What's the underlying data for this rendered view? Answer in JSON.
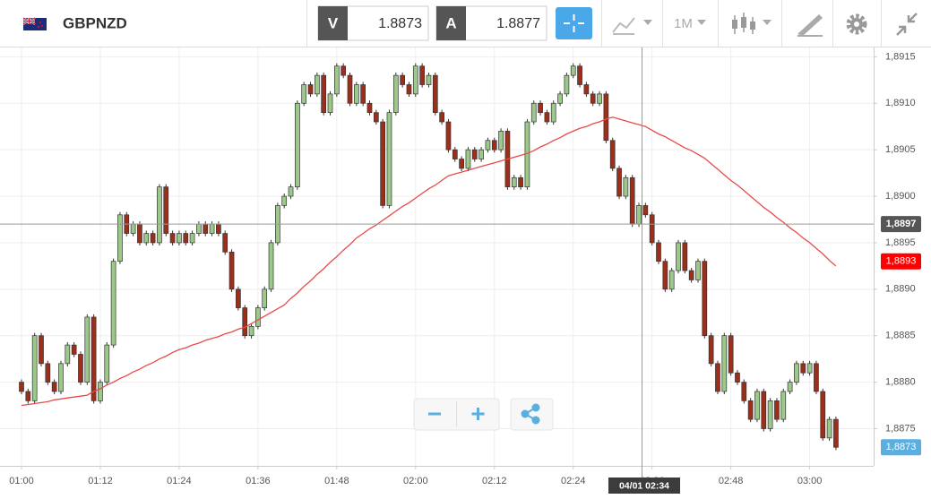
{
  "toolbar": {
    "symbol": "GBPNZD",
    "bid_label": "V",
    "bid": 1.8873,
    "ask_label": "A",
    "ask": 1.8877,
    "timeframe": "1M"
  },
  "chart_data": {
    "type": "candlestick",
    "categories": [
      "01:00",
      null,
      null,
      null,
      null,
      null,
      null,
      null,
      null,
      null,
      null,
      null,
      "01:12",
      null,
      null,
      null,
      null,
      null,
      null,
      null,
      null,
      null,
      null,
      null,
      "01:24",
      null,
      null,
      null,
      null,
      null,
      null,
      null,
      null,
      null,
      null,
      null,
      "01:36",
      null,
      null,
      null,
      null,
      null,
      null,
      null,
      null,
      null,
      null,
      null,
      "01:48",
      null,
      null,
      null,
      null,
      null,
      null,
      null,
      null,
      null,
      null,
      null,
      "02:00",
      null,
      null,
      null,
      null,
      null,
      null,
      null,
      null,
      null,
      null,
      null,
      "02:12",
      null,
      null,
      null,
      null,
      null,
      null,
      null,
      null,
      null,
      null,
      null,
      "02:24",
      null,
      null,
      null,
      null,
      null,
      null,
      null,
      null,
      null,
      null,
      null,
      "02:36",
      null,
      null,
      null,
      null,
      null,
      null,
      null,
      null,
      null,
      null,
      null,
      "02:48",
      null,
      null,
      null,
      null,
      null,
      null,
      null,
      null,
      null,
      null,
      null,
      "03:00",
      null,
      null,
      null,
      null
    ],
    "open": [
      1.888,
      1.8879,
      1.8878,
      1.8885,
      1.8882,
      1.888,
      1.8879,
      1.8882,
      1.8884,
      1.8883,
      1.888,
      1.8887,
      1.8878,
      1.888,
      1.8884,
      1.8893,
      1.8898,
      1.8896,
      1.8897,
      1.8895,
      1.8896,
      1.8895,
      1.8901,
      1.8896,
      1.8895,
      1.8896,
      1.8895,
      1.8896,
      1.8897,
      1.8896,
      1.8897,
      1.8896,
      1.8894,
      1.889,
      1.8888,
      1.8885,
      1.8886,
      1.8888,
      1.889,
      1.8895,
      1.8899,
      1.89,
      1.8901,
      1.891,
      1.8912,
      1.8911,
      1.8913,
      1.8909,
      1.8911,
      1.8914,
      1.8913,
      1.891,
      1.8912,
      1.891,
      1.8909,
      1.8908,
      1.8899,
      1.8909,
      1.8913,
      1.8912,
      1.8911,
      1.8914,
      1.8912,
      1.8913,
      1.8909,
      1.8908,
      1.8905,
      1.8904,
      1.8903,
      1.8905,
      1.8904,
      1.8905,
      1.8906,
      1.8905,
      1.8907,
      1.8901,
      1.8902,
      1.8901,
      1.8908,
      1.891,
      1.8909,
      1.8908,
      1.891,
      1.8911,
      1.8913,
      1.8914,
      1.8912,
      1.8911,
      1.891,
      1.8911,
      1.8906,
      1.8903,
      1.89,
      1.8902,
      1.8897,
      1.8899,
      1.8898,
      1.8895,
      1.8893,
      1.889,
      1.8892,
      1.8895,
      1.8892,
      1.8891,
      1.8893,
      1.8885,
      1.8882,
      1.8879,
      1.8885,
      1.8881,
      1.888,
      1.8878,
      1.8876,
      1.8879,
      1.8875,
      1.8878,
      1.8876,
      1.8879,
      1.888,
      1.8882,
      1.8881,
      1.8882,
      1.8879,
      1.8874,
      1.8876
    ],
    "high": [
      1.88803,
      1.88793,
      1.88853,
      1.88853,
      1.88823,
      1.88803,
      1.88823,
      1.88843,
      1.88843,
      1.88833,
      1.88873,
      1.88873,
      1.88803,
      1.88843,
      1.88933,
      1.88983,
      1.88983,
      1.88973,
      1.88973,
      1.88963,
      1.88963,
      1.89013,
      1.89013,
      1.88963,
      1.88963,
      1.88963,
      1.88963,
      1.88973,
      1.88973,
      1.88973,
      1.88973,
      1.88963,
      1.88943,
      1.88903,
      1.88883,
      1.88863,
      1.88883,
      1.88903,
      1.88953,
      1.88993,
      1.89003,
      1.89013,
      1.89103,
      1.89123,
      1.89123,
      1.89133,
      1.89133,
      1.89113,
      1.89143,
      1.89143,
      1.89133,
      1.89123,
      1.89123,
      1.89103,
      1.89093,
      1.89083,
      1.89093,
      1.89133,
      1.89133,
      1.89123,
      1.89143,
      1.89143,
      1.89133,
      1.89133,
      1.89093,
      1.89083,
      1.89053,
      1.89043,
      1.89053,
      1.89053,
      1.89053,
      1.89063,
      1.89063,
      1.89073,
      1.89073,
      1.89023,
      1.89023,
      1.89083,
      1.89103,
      1.89103,
      1.89093,
      1.89103,
      1.89113,
      1.89133,
      1.89143,
      1.89143,
      1.89123,
      1.89113,
      1.89113,
      1.89113,
      1.89063,
      1.89033,
      1.89023,
      1.89023,
      1.88993,
      1.88993,
      1.88983,
      1.88953,
      1.88933,
      1.88923,
      1.88953,
      1.88953,
      1.88923,
      1.88933,
      1.88933,
      1.88853,
      1.88823,
      1.88853,
      1.88853,
      1.88813,
      1.88803,
      1.88783,
      1.88793,
      1.88793,
      1.88783,
      1.88783,
      1.88793,
      1.88803,
      1.88823,
      1.88823,
      1.88823,
      1.88823,
      1.88793,
      1.88763,
      1.88763
    ],
    "low": [
      1.88787,
      1.88777,
      1.88777,
      1.88817,
      1.88797,
      1.88787,
      1.88787,
      1.88817,
      1.88827,
      1.88797,
      1.88797,
      1.88777,
      1.88777,
      1.88797,
      1.88837,
      1.88927,
      1.88957,
      1.88957,
      1.88947,
      1.88947,
      1.88947,
      1.88947,
      1.88957,
      1.88947,
      1.88947,
      1.88947,
      1.88947,
      1.88957,
      1.88957,
      1.88957,
      1.88957,
      1.88937,
      1.88897,
      1.88877,
      1.88847,
      1.88847,
      1.88857,
      1.88877,
      1.88897,
      1.88947,
      1.88987,
      1.88997,
      1.89007,
      1.89097,
      1.89107,
      1.89107,
      1.89087,
      1.89087,
      1.89107,
      1.89127,
      1.89097,
      1.89097,
      1.89097,
      1.89087,
      1.89077,
      1.88987,
      1.88987,
      1.89087,
      1.89117,
      1.89107,
      1.89107,
      1.89117,
      1.89117,
      1.89087,
      1.89077,
      1.89047,
      1.89037,
      1.89027,
      1.89027,
      1.89037,
      1.89037,
      1.89047,
      1.89047,
      1.89047,
      1.89007,
      1.89007,
      1.89007,
      1.89007,
      1.89077,
      1.89087,
      1.89077,
      1.89077,
      1.89097,
      1.89107,
      1.89127,
      1.89117,
      1.89107,
      1.89097,
      1.89097,
      1.89057,
      1.89027,
      1.88997,
      1.88997,
      1.88967,
      1.88967,
      1.88977,
      1.88947,
      1.88927,
      1.88897,
      1.88897,
      1.88917,
      1.88917,
      1.88907,
      1.88907,
      1.88847,
      1.88817,
      1.88787,
      1.88787,
      1.88807,
      1.88797,
      1.88777,
      1.88757,
      1.88757,
      1.88747,
      1.88747,
      1.88757,
      1.88757,
      1.88787,
      1.88797,
      1.88807,
      1.88807,
      1.88787,
      1.88737,
      1.88737,
      1.88727
    ],
    "close": [
      1.8879,
      1.8878,
      1.8885,
      1.8882,
      1.888,
      1.8879,
      1.8882,
      1.8884,
      1.8883,
      1.888,
      1.8887,
      1.8878,
      1.888,
      1.8884,
      1.8893,
      1.8898,
      1.8896,
      1.8897,
      1.8895,
      1.8896,
      1.8895,
      1.8901,
      1.8896,
      1.8895,
      1.8896,
      1.8895,
      1.8896,
      1.8897,
      1.8896,
      1.8897,
      1.8896,
      1.8894,
      1.889,
      1.8888,
      1.8885,
      1.8886,
      1.8888,
      1.889,
      1.8895,
      1.8899,
      1.89,
      1.8901,
      1.891,
      1.8912,
      1.8911,
      1.8913,
      1.8909,
      1.8911,
      1.8914,
      1.8913,
      1.891,
      1.8912,
      1.891,
      1.8909,
      1.8908,
      1.8899,
      1.8909,
      1.8913,
      1.8912,
      1.8911,
      1.8914,
      1.8912,
      1.8913,
      1.8909,
      1.8908,
      1.8905,
      1.8904,
      1.8903,
      1.8905,
      1.8904,
      1.8905,
      1.8906,
      1.8905,
      1.8907,
      1.8901,
      1.8902,
      1.8901,
      1.8908,
      1.891,
      1.8909,
      1.8908,
      1.891,
      1.8911,
      1.8913,
      1.8914,
      1.8912,
      1.8911,
      1.891,
      1.8911,
      1.8906,
      1.8903,
      1.89,
      1.8902,
      1.8897,
      1.8899,
      1.8898,
      1.8895,
      1.8893,
      1.889,
      1.8892,
      1.8895,
      1.8892,
      1.8891,
      1.8893,
      1.8885,
      1.8882,
      1.8879,
      1.8885,
      1.8881,
      1.888,
      1.8878,
      1.8876,
      1.8879,
      1.8875,
      1.8878,
      1.8876,
      1.8879,
      1.888,
      1.8882,
      1.8881,
      1.8882,
      1.8879,
      1.8874,
      1.8876,
      1.8873
    ],
    "up_color": "#9cc98a",
    "down_color": "#9b2f1c",
    "overlay": {
      "color": "#e84a4a",
      "values": [
        1.88775,
        1.88776,
        1.88777,
        1.88778,
        1.88779,
        1.88781,
        1.88782,
        1.88783,
        1.88784,
        1.88785,
        1.88786,
        1.8879,
        1.88793,
        1.88797,
        1.888,
        1.88804,
        1.88807,
        1.88811,
        1.88814,
        1.88818,
        1.88821,
        1.88825,
        1.88828,
        1.88832,
        1.88835,
        1.88837,
        1.8884,
        1.88842,
        1.88845,
        1.88847,
        1.88849,
        1.88852,
        1.88854,
        1.88857,
        1.88859,
        1.88863,
        1.88867,
        1.88871,
        1.88875,
        1.88879,
        1.88883,
        1.8889,
        1.88896,
        1.88903,
        1.88909,
        1.88916,
        1.88922,
        1.88929,
        1.88935,
        1.88942,
        1.88948,
        1.88955,
        1.8896,
        1.88965,
        1.88969,
        1.88974,
        1.88979,
        1.88984,
        1.88989,
        1.88993,
        1.88998,
        1.89003,
        1.89008,
        1.89012,
        1.89017,
        1.89022,
        1.89024,
        1.89026,
        1.89028,
        1.8903,
        1.89032,
        1.89034,
        1.89036,
        1.89038,
        1.8904,
        1.89042,
        1.89044,
        1.89046,
        1.89049,
        1.89053,
        1.89056,
        1.8906,
        1.89063,
        1.89067,
        1.8907,
        1.89073,
        1.89075,
        1.89078,
        1.8908,
        1.89083,
        1.89085,
        1.89083,
        1.89081,
        1.89079,
        1.89077,
        1.89075,
        1.89071,
        1.89067,
        1.89064,
        1.8906,
        1.89056,
        1.89052,
        1.89049,
        1.89045,
        1.89041,
        1.89035,
        1.89029,
        1.89023,
        1.89017,
        1.89012,
        1.89006,
        1.89,
        1.88994,
        1.88988,
        1.88983,
        1.88977,
        1.88972,
        1.88966,
        1.88961,
        1.88955,
        1.8895,
        1.88944,
        1.88938,
        1.88931,
        1.88925
      ]
    },
    "ylim": [
      1.8871,
      1.8916
    ],
    "yticks": [
      {
        "value": 1.8875,
        "label": "1,8875"
      },
      {
        "value": 1.888,
        "label": "1,8880"
      },
      {
        "value": 1.8885,
        "label": "1,8885"
      },
      {
        "value": 1.889,
        "label": "1,8890"
      },
      {
        "value": 1.8895,
        "label": "1,8895"
      },
      {
        "value": 1.89,
        "label": "1,8900"
      },
      {
        "value": 1.8905,
        "label": "1,8905"
      },
      {
        "value": 1.891,
        "label": "1,8910"
      },
      {
        "value": 1.8915,
        "label": "1,8915"
      }
    ],
    "grid": true,
    "crosshair": {
      "value": 1.8897,
      "label": "1,8897",
      "time_label": "04/01 02:34"
    },
    "price_badges": [
      {
        "value": 1.8893,
        "label": "1,8893",
        "color": "#ff0000"
      },
      {
        "value": 1.8873,
        "label": "1,8873",
        "color": "#5aaee0"
      }
    ]
  }
}
